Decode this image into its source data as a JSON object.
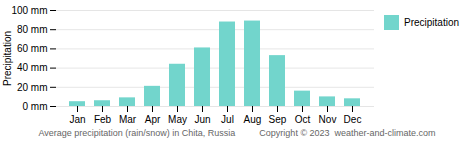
{
  "chart_data": {
    "type": "bar",
    "categories": [
      "Jan",
      "Feb",
      "Mar",
      "Apr",
      "May",
      "Jun",
      "Jul",
      "Aug",
      "Sep",
      "Oct",
      "Nov",
      "Dec"
    ],
    "series": [
      {
        "name": "Precipitation",
        "color": "#72d5cc",
        "values": [
          5,
          6,
          9,
          21,
          44,
          61,
          88,
          89,
          53,
          16,
          10,
          8
        ]
      }
    ],
    "ylabel": "Precipitation",
    "xlabel": "Average precipitation (rain/snow) in Chita, Russia",
    "caption": "Copyright © 2023  weather-and-climate.com",
    "ylim": [
      0,
      100
    ],
    "yticks": [
      {
        "value": 0,
        "label": "0 mm"
      },
      {
        "value": 20,
        "label": "20 mm"
      },
      {
        "value": 40,
        "label": "40 mm"
      },
      {
        "value": 60,
        "label": "60 mm"
      },
      {
        "value": 80,
        "label": "80 mm"
      },
      {
        "value": 100,
        "label": "100 mm"
      }
    ],
    "grid": true,
    "legend": "upper right"
  }
}
